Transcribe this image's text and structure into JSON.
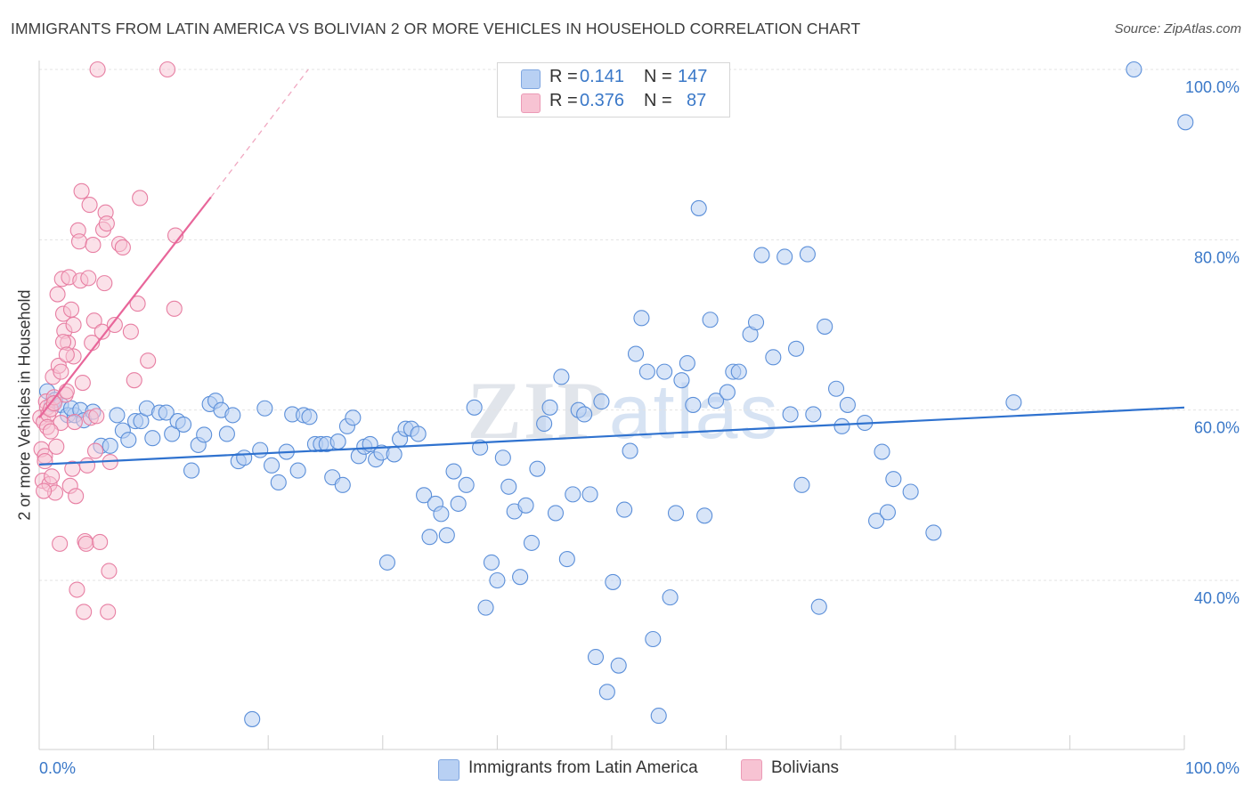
{
  "title": "IMMIGRANTS FROM LATIN AMERICA VS BOLIVIAN 2 OR MORE VEHICLES IN HOUSEHOLD CORRELATION CHART",
  "source": "Source: ZipAtlas.com",
  "watermark": "ZIPatlas",
  "colors": {
    "blue": "#5b8fd9",
    "blue_fill": "#b8d0f3",
    "pink": "#e77ea2",
    "pink_fill": "#f7c3d3",
    "blue_line": "#2f72cf",
    "pink_line": "#e8669a",
    "accent_text": "#3a78c8"
  },
  "legend": {
    "row1": {
      "r_label": "R =",
      "r_value": "0.141",
      "n_label": "N =",
      "n_value": "147"
    },
    "row2": {
      "r_label": "R =",
      "r_value": "0.376",
      "n_label": "N =",
      "n_value": "87"
    }
  },
  "bottom_legend": {
    "series1": "Immigrants from Latin America",
    "series2": "Bolivians"
  },
  "chart_data": {
    "type": "scatter",
    "title": "IMMIGRANTS FROM LATIN AMERICA VS BOLIVIAN 2 OR MORE VEHICLES IN HOUSEHOLD CORRELATION CHART",
    "xlabel": "",
    "ylabel": "2 or more Vehicles in Household",
    "xlim": [
      0,
      100
    ],
    "ylim": [
      20,
      103
    ],
    "x_tick_labels": [
      "0.0%",
      "100.0%"
    ],
    "y_tick_labels": [
      "40.0%",
      "60.0%",
      "80.0%",
      "100.0%"
    ],
    "y_ticks": [
      40,
      60,
      80,
      100
    ],
    "grid": true,
    "legend_position": "top-center",
    "series": [
      {
        "name": "Immigrants from Latin America",
        "R": 0.141,
        "N": 147,
        "trend": {
          "x": [
            0,
            100
          ],
          "y": [
            53.6,
            60.3
          ]
        },
        "points": [
          [
            0.7,
            62.2
          ],
          [
            1.1,
            60.7
          ],
          [
            1.4,
            61.2
          ],
          [
            1.9,
            60.6
          ],
          [
            2.5,
            59.4
          ],
          [
            3.1,
            59.4
          ],
          [
            2.8,
            60.2
          ],
          [
            3.6,
            60.0
          ],
          [
            3.9,
            58.8
          ],
          [
            4.7,
            59.8
          ],
          [
            5.4,
            55.8
          ],
          [
            6.2,
            55.8
          ],
          [
            6.8,
            59.4
          ],
          [
            7.3,
            57.6
          ],
          [
            7.8,
            56.5
          ],
          [
            8.4,
            58.7
          ],
          [
            8.9,
            58.7
          ],
          [
            9.4,
            60.2
          ],
          [
            9.9,
            56.7
          ],
          [
            10.5,
            59.7
          ],
          [
            11.1,
            59.7
          ],
          [
            11.6,
            57.2
          ],
          [
            12.1,
            58.7
          ],
          [
            12.6,
            58.3
          ],
          [
            13.3,
            52.9
          ],
          [
            13.9,
            55.9
          ],
          [
            14.4,
            57.1
          ],
          [
            14.9,
            60.7
          ],
          [
            15.4,
            61.1
          ],
          [
            15.9,
            60.0
          ],
          [
            16.4,
            57.2
          ],
          [
            16.9,
            59.4
          ],
          [
            17.4,
            54.0
          ],
          [
            17.9,
            54.4
          ],
          [
            18.6,
            23.7
          ],
          [
            19.3,
            55.3
          ],
          [
            19.7,
            60.2
          ],
          [
            20.3,
            53.5
          ],
          [
            20.9,
            51.5
          ],
          [
            21.6,
            55.1
          ],
          [
            22.1,
            59.5
          ],
          [
            22.6,
            52.9
          ],
          [
            23.1,
            59.4
          ],
          [
            23.6,
            59.2
          ],
          [
            24.1,
            56.0
          ],
          [
            24.6,
            56.0
          ],
          [
            25.1,
            56.0
          ],
          [
            25.6,
            52.1
          ],
          [
            26.1,
            56.3
          ],
          [
            26.5,
            51.2
          ],
          [
            26.9,
            58.1
          ],
          [
            27.4,
            59.1
          ],
          [
            27.9,
            54.6
          ],
          [
            28.4,
            55.7
          ],
          [
            28.9,
            56.0
          ],
          [
            29.4,
            54.2
          ],
          [
            29.9,
            55.0
          ],
          [
            30.4,
            42.1
          ],
          [
            31.0,
            54.8
          ],
          [
            31.5,
            56.6
          ],
          [
            32.0,
            57.8
          ],
          [
            32.5,
            57.8
          ],
          [
            33.1,
            57.2
          ],
          [
            33.6,
            50.0
          ],
          [
            34.1,
            45.1
          ],
          [
            34.6,
            49.0
          ],
          [
            35.1,
            47.8
          ],
          [
            35.6,
            45.3
          ],
          [
            36.2,
            52.8
          ],
          [
            36.6,
            49.0
          ],
          [
            37.3,
            51.2
          ],
          [
            38.0,
            60.3
          ],
          [
            38.5,
            55.6
          ],
          [
            39.0,
            36.8
          ],
          [
            39.5,
            42.1
          ],
          [
            40.0,
            40.0
          ],
          [
            40.5,
            54.4
          ],
          [
            41.0,
            51.0
          ],
          [
            41.5,
            48.1
          ],
          [
            42.0,
            40.4
          ],
          [
            42.5,
            48.8
          ],
          [
            43.0,
            44.4
          ],
          [
            43.5,
            53.1
          ],
          [
            44.1,
            58.4
          ],
          [
            44.6,
            60.3
          ],
          [
            45.1,
            47.9
          ],
          [
            45.6,
            63.9
          ],
          [
            46.1,
            42.5
          ],
          [
            46.6,
            50.1
          ],
          [
            47.1,
            60.0
          ],
          [
            47.6,
            59.5
          ],
          [
            48.1,
            50.1
          ],
          [
            48.6,
            31.0
          ],
          [
            49.1,
            61.0
          ],
          [
            49.6,
            26.9
          ],
          [
            50.1,
            39.8
          ],
          [
            50.6,
            30.0
          ],
          [
            51.1,
            48.3
          ],
          [
            51.6,
            55.2
          ],
          [
            52.1,
            66.6
          ],
          [
            52.6,
            70.8
          ],
          [
            53.1,
            64.5
          ],
          [
            53.6,
            33.1
          ],
          [
            54.1,
            24.1
          ],
          [
            54.6,
            64.5
          ],
          [
            55.1,
            38.0
          ],
          [
            55.6,
            47.9
          ],
          [
            56.1,
            63.5
          ],
          [
            56.6,
            65.5
          ],
          [
            57.1,
            60.6
          ],
          [
            57.6,
            83.7
          ],
          [
            58.1,
            47.6
          ],
          [
            58.6,
            70.6
          ],
          [
            59.1,
            61.1
          ],
          [
            60.1,
            62.1
          ],
          [
            60.6,
            64.5
          ],
          [
            61.1,
            64.5
          ],
          [
            62.1,
            68.9
          ],
          [
            62.6,
            70.3
          ],
          [
            63.1,
            78.2
          ],
          [
            64.1,
            66.2
          ],
          [
            65.1,
            78.0
          ],
          [
            65.6,
            59.5
          ],
          [
            66.1,
            67.2
          ],
          [
            66.6,
            51.2
          ],
          [
            67.1,
            78.3
          ],
          [
            67.6,
            59.5
          ],
          [
            68.1,
            36.9
          ],
          [
            68.6,
            69.8
          ],
          [
            69.6,
            62.5
          ],
          [
            70.1,
            58.1
          ],
          [
            70.6,
            60.6
          ],
          [
            72.1,
            58.5
          ],
          [
            73.1,
            47.0
          ],
          [
            73.6,
            55.1
          ],
          [
            74.1,
            48.0
          ],
          [
            74.6,
            51.9
          ],
          [
            76.1,
            50.4
          ],
          [
            78.1,
            45.6
          ],
          [
            95.6,
            100.0
          ],
          [
            100.1,
            93.8
          ],
          [
            85.1,
            60.9
          ]
        ]
      },
      {
        "name": "Bolivians",
        "R": 0.376,
        "N": 87,
        "trend": {
          "x": [
            0,
            15
          ],
          "y": [
            59.1,
            85.0
          ]
        },
        "trend_extension": {
          "x": [
            15,
            23.5
          ],
          "y": [
            85.0,
            100.0
          ]
        },
        "points": [
          [
            0.1,
            59.1
          ],
          [
            0.2,
            55.4
          ],
          [
            0.3,
            51.7
          ],
          [
            0.4,
            58.6
          ],
          [
            0.5,
            54.6
          ],
          [
            0.6,
            61.0
          ],
          [
            0.7,
            60.3
          ],
          [
            0.8,
            59.5
          ],
          [
            0.9,
            51.3
          ],
          [
            1.0,
            60.1
          ],
          [
            1.1,
            52.2
          ],
          [
            1.2,
            63.9
          ],
          [
            1.3,
            61.5
          ],
          [
            1.4,
            50.3
          ],
          [
            1.5,
            55.7
          ],
          [
            1.6,
            73.6
          ],
          [
            1.7,
            65.2
          ],
          [
            1.8,
            44.3
          ],
          [
            1.9,
            58.5
          ],
          [
            2.0,
            75.4
          ],
          [
            2.1,
            71.3
          ],
          [
            2.2,
            69.3
          ],
          [
            2.3,
            61.8
          ],
          [
            2.4,
            62.2
          ],
          [
            2.5,
            67.9
          ],
          [
            2.6,
            75.6
          ],
          [
            2.7,
            51.1
          ],
          [
            2.8,
            71.8
          ],
          [
            2.9,
            53.1
          ],
          [
            3.0,
            66.3
          ],
          [
            3.1,
            58.6
          ],
          [
            3.2,
            49.9
          ],
          [
            3.3,
            38.9
          ],
          [
            3.4,
            81.1
          ],
          [
            3.5,
            79.8
          ],
          [
            3.6,
            75.2
          ],
          [
            3.7,
            85.7
          ],
          [
            3.8,
            63.2
          ],
          [
            3.9,
            36.3
          ],
          [
            4.0,
            44.6
          ],
          [
            4.1,
            44.3
          ],
          [
            4.2,
            53.5
          ],
          [
            4.3,
            75.5
          ],
          [
            4.4,
            84.1
          ],
          [
            4.5,
            59.1
          ],
          [
            4.6,
            67.9
          ],
          [
            4.7,
            79.4
          ],
          [
            4.8,
            70.5
          ],
          [
            4.9,
            55.2
          ],
          [
            5.0,
            59.3
          ],
          [
            5.1,
            100.0
          ],
          [
            5.3,
            44.5
          ],
          [
            5.5,
            69.2
          ],
          [
            5.6,
            81.2
          ],
          [
            5.7,
            74.9
          ],
          [
            5.8,
            83.2
          ],
          [
            5.9,
            81.9
          ],
          [
            6.0,
            36.3
          ],
          [
            6.1,
            41.1
          ],
          [
            6.2,
            53.9
          ],
          [
            6.6,
            70.0
          ],
          [
            7.0,
            79.5
          ],
          [
            7.3,
            79.1
          ],
          [
            8.0,
            69.2
          ],
          [
            8.3,
            63.5
          ],
          [
            8.6,
            72.5
          ],
          [
            8.8,
            84.9
          ],
          [
            9.5,
            65.8
          ],
          [
            11.2,
            100.0
          ],
          [
            11.9,
            80.5
          ],
          [
            11.8,
            71.9
          ],
          [
            0.5,
            54.0
          ],
          [
            0.7,
            58.0
          ],
          [
            1.0,
            57.5
          ],
          [
            0.4,
            50.5
          ],
          [
            2.1,
            68.0
          ],
          [
            1.9,
            64.5
          ],
          [
            3.0,
            70.0
          ],
          [
            2.4,
            66.5
          ],
          [
            1.3,
            60.8
          ]
        ]
      }
    ]
  }
}
